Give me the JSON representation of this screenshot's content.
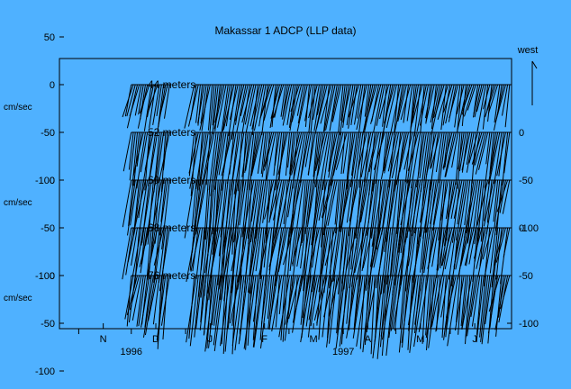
{
  "chart_data": {
    "type": "line",
    "title": "Makassar 1 ADCP (LLP data)",
    "units_label": "cm/sec",
    "direction_label": "west",
    "x_months": [
      {
        "label": "N",
        "year": 1996,
        "month": 11
      },
      {
        "label": "D",
        "year": 1996,
        "month": 12
      },
      {
        "label": "J",
        "year": 1997,
        "month": 1
      },
      {
        "label": "F",
        "year": 1997,
        "month": 2
      },
      {
        "label": "M",
        "year": 1997,
        "month": 3
      },
      {
        "label": "A",
        "year": 1997,
        "month": 4
      },
      {
        "label": "M",
        "year": 1997,
        "month": 5
      },
      {
        "label": "J",
        "year": 1997,
        "month": 6
      }
    ],
    "x_years": [
      {
        "label": "1996",
        "year": 1996,
        "month": 12
      },
      {
        "label": "1997",
        "year": 1997,
        "month": 4
      }
    ],
    "x_range": [
      "1996-10-21",
      "1997-07-06"
    ],
    "y_ticks_left": [
      {
        "label": "50",
        "value": 50
      },
      {
        "label": "0",
        "value": 0
      },
      {
        "label": "-50",
        "value": -50
      },
      {
        "label": "-100",
        "value": -100
      }
    ],
    "segments": [
      {
        "start": "1996-12-01",
        "end": "1996-12-24"
      },
      {
        "start": "1997-01-06",
        "end": "1997-07-06"
      }
    ],
    "series": [
      {
        "name": "44 meters",
        "y_range": [
          -50,
          5
        ],
        "envelope_mean": [
          -40,
          -35,
          -42,
          -48,
          -38,
          -44,
          -46,
          -40,
          -36
        ],
        "amp": 12
      },
      {
        "name": "52 meters",
        "y_range": [
          -60,
          5
        ],
        "envelope_mean": [
          -44,
          -40,
          -52,
          -58,
          -46,
          -50,
          -54,
          -48,
          -42
        ],
        "amp": 14
      },
      {
        "name": "60 meters",
        "y_range": [
          -70,
          5
        ],
        "envelope_mean": [
          -48,
          -46,
          -58,
          -66,
          -52,
          -56,
          -62,
          -54,
          -48
        ],
        "amp": 16
      },
      {
        "name": "68 meters",
        "y_range": [
          -70,
          5
        ],
        "envelope_mean": [
          -46,
          -44,
          -56,
          -62,
          -50,
          -54,
          -58,
          -50,
          -46
        ],
        "amp": 16
      },
      {
        "name": "76 meters",
        "y_range": [
          -80,
          5
        ],
        "envelope_mean": [
          -50,
          -48,
          -62,
          -70,
          -56,
          -60,
          -74,
          -58,
          -52
        ],
        "amp": 18
      }
    ],
    "right_ticks_mapping": [
      {
        "panel": 1,
        "labels": [
          {
            "label": "0",
            "value": 0
          },
          {
            "label": "-50",
            "value": -50
          },
          {
            "label": "-100",
            "value": -100
          }
        ]
      },
      {
        "panel": 3,
        "labels": [
          {
            "label": "0",
            "value": 0
          },
          {
            "label": "-50",
            "value": -50
          },
          {
            "label": "-100",
            "value": -100
          }
        ]
      }
    ],
    "left_ticks_panels": [
      0,
      2,
      4
    ]
  }
}
